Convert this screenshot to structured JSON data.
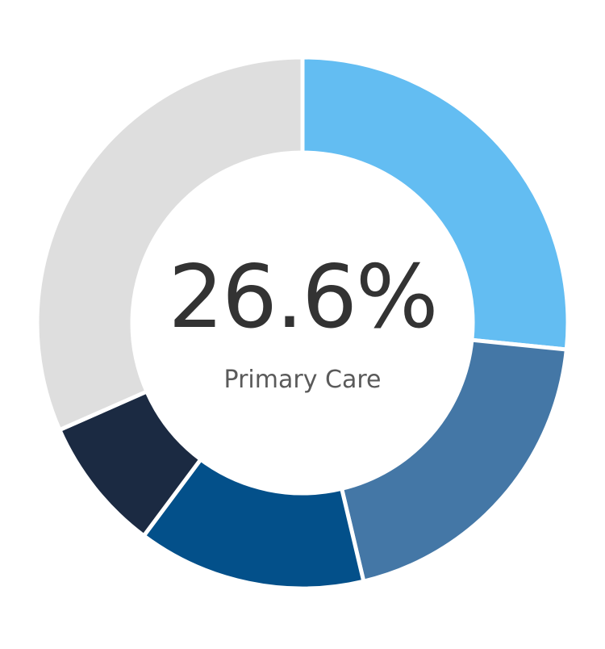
{
  "chart_data": {
    "type": "pie",
    "donut": true,
    "center_value": "26.6%",
    "center_label": "Primary Care",
    "values": [
      26.6,
      19.7,
      13.9,
      8.2,
      31.6
    ],
    "colors": [
      "#63bdf2",
      "#4477a6",
      "#03508a",
      "#1b2a42",
      "#dedede"
    ],
    "separator_color": "#ffffff"
  }
}
